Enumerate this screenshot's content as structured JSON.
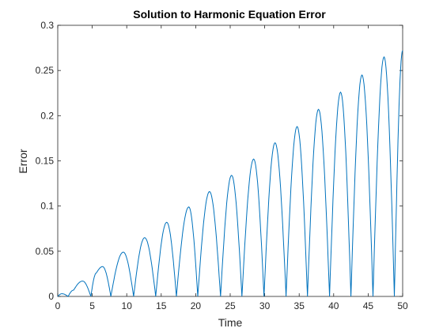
{
  "chart_data": {
    "type": "line",
    "title": "Solution to Harmonic Equation Error",
    "xlabel": "Time",
    "ylabel": "Error",
    "xlim": [
      0,
      50
    ],
    "ylim": [
      0,
      0.3
    ],
    "xticks": [
      "0",
      "5",
      "10",
      "15",
      "20",
      "25",
      "30",
      "35",
      "40",
      "45",
      "50"
    ],
    "yticks": [
      "0",
      "0.05",
      "0.1",
      "0.15",
      "0.2",
      "0.25",
      "0.3"
    ],
    "grid": false,
    "line_color": "#0072BD",
    "series": [
      {
        "x": [
          0,
          0.6,
          1.5,
          2.3,
          3.6,
          4.8,
          5.6,
          6.5,
          7.7,
          9.5,
          11.0,
          12.6,
          14.2,
          15.8,
          17.2,
          19.0,
          20.3,
          22.0,
          23.6,
          25.2,
          26.7,
          28.4,
          29.9,
          31.5,
          33.1,
          34.7,
          36.2,
          37.8,
          39.4,
          41.0,
          42.5,
          44.1,
          45.7,
          47.3,
          48.8,
          50.0
        ],
        "y": [
          0,
          0.003,
          0,
          0.007,
          0.017,
          0,
          0.026,
          0.033,
          0,
          0.049,
          0,
          0.065,
          0,
          0.082,
          0,
          0.099,
          0,
          0.116,
          0,
          0.134,
          0,
          0.152,
          0,
          0.17,
          0,
          0.188,
          0,
          0.207,
          0,
          0.226,
          0,
          0.245,
          0,
          0.265,
          0,
          0.272
        ]
      }
    ]
  }
}
